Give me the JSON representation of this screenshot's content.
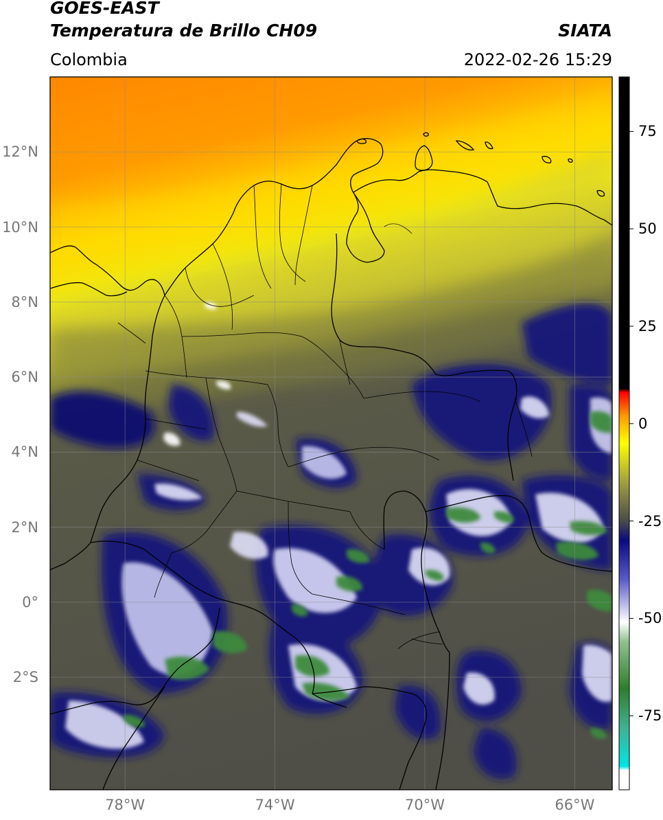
{
  "header": {
    "title_line1": "GOES-EAST",
    "title_line2": "Temperatura de Brillo CH09",
    "region": "Colombia",
    "agency": "SIATA",
    "datetime": "2022-02-26 15:29"
  },
  "map": {
    "lat_labels": [
      "12°N",
      "10°N",
      "8°N",
      "6°N",
      "4°N",
      "2°N",
      "0°",
      "2°S"
    ],
    "lat_values": [
      12,
      10,
      8,
      6,
      4,
      2,
      0,
      -2
    ],
    "lon_labels": [
      "78°W",
      "74°W",
      "70°W",
      "66°W"
    ],
    "lon_values": [
      -78,
      -74,
      -70,
      -66
    ],
    "extent": {
      "lon_min": -80,
      "lon_max": -65,
      "lat_min": -5,
      "lat_max": 14
    },
    "colors": {
      "warm_orange": "#ff8c00",
      "yellow": "#ffee00",
      "olive": "#8a8a3a",
      "dark_gray": "#55554a",
      "navy": "#15157a",
      "white": "#ffffff",
      "green": "#3a8a3a"
    }
  },
  "colorbar": {
    "tick_labels": [
      "75",
      "50",
      "25",
      "0",
      "-25",
      "-50",
      "-75"
    ],
    "tick_values": [
      75,
      50,
      25,
      0,
      -25,
      -50,
      -75
    ],
    "range": [
      -94,
      89
    ],
    "stops": [
      {
        "v": -94,
        "c": "#ffffff"
      },
      {
        "v": -89,
        "c": "#ffffff"
      },
      {
        "v": -88,
        "c": "#00e5e5"
      },
      {
        "v": -78,
        "c": "#40b090"
      },
      {
        "v": -68,
        "c": "#2e7d2e"
      },
      {
        "v": -56,
        "c": "#90c090"
      },
      {
        "v": -51,
        "c": "#ffffff"
      },
      {
        "v": -40,
        "c": "#5a5ac8"
      },
      {
        "v": -30,
        "c": "#0a0a80"
      },
      {
        "v": -25,
        "c": "#4a4a4a"
      },
      {
        "v": -15,
        "c": "#a0a040"
      },
      {
        "v": -5,
        "c": "#ffff00"
      },
      {
        "v": 2,
        "c": "#ff9900"
      },
      {
        "v": 8,
        "c": "#ff0000"
      },
      {
        "v": 9,
        "c": "#000000"
      },
      {
        "v": 89,
        "c": "#000000"
      }
    ]
  }
}
